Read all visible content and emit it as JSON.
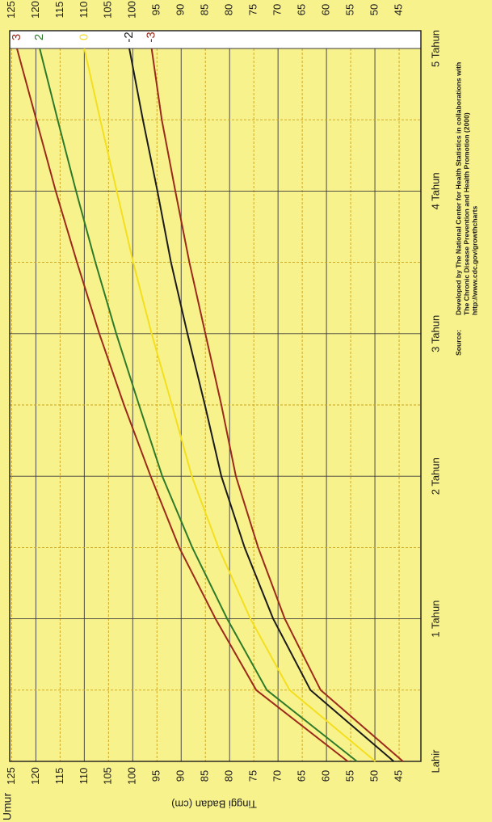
{
  "chart_data": {
    "type": "line",
    "y_label": "Tinggi Badan (cm)",
    "x_label": "Umur",
    "x": [
      0,
      6,
      12,
      18,
      24,
      30,
      36,
      42,
      48,
      54,
      60
    ],
    "xlim": [
      0,
      60
    ],
    "xticks": [
      {
        "value": 0,
        "label": "Lahir"
      },
      {
        "value": 12,
        "label": "1 Tahun"
      },
      {
        "value": 24,
        "label": "2 Tahun"
      },
      {
        "value": 36,
        "label": "3 Tahun"
      },
      {
        "value": 48,
        "label": "4 Tahun"
      },
      {
        "value": 60,
        "label": "5 Tahun"
      }
    ],
    "x_minor_ticks": [
      6,
      18,
      30,
      42,
      54
    ],
    "ylim": [
      40.5,
      125.4
    ],
    "yticks": [
      125,
      120,
      115,
      110,
      105,
      100,
      95,
      90,
      85,
      80,
      75,
      70,
      65,
      60,
      55,
      50,
      45
    ],
    "grid": true,
    "series": [
      {
        "name": "3",
        "color": "#9c2a1c",
        "values": [
          55.6,
          74.5,
          82.9,
          90.4,
          96.3,
          101.8,
          106.9,
          111.5,
          115.9,
          119.9,
          123.9
        ]
      },
      {
        "name": "2",
        "color": "#2f7a2a",
        "values": [
          53.7,
          72.3,
          80.5,
          87.7,
          93.9,
          98.7,
          103.4,
          107.7,
          111.7,
          115.5,
          119.2
        ]
      },
      {
        "name": "0",
        "color": "#f3df1e",
        "values": [
          49.9,
          67.6,
          75.7,
          82.3,
          87.8,
          91.9,
          96.1,
          99.9,
          103.3,
          106.7,
          110.0
        ]
      },
      {
        "name": "-2",
        "color": "#1b1b1b",
        "values": [
          46.1,
          63.3,
          71.0,
          76.9,
          81.7,
          85.1,
          88.7,
          92.1,
          94.9,
          97.9,
          100.7
        ]
      },
      {
        "name": "-3",
        "color": "#9c2a1c",
        "values": [
          44.2,
          61.2,
          68.6,
          74.1,
          78.7,
          81.7,
          85.0,
          88.3,
          91.2,
          94.0,
          96.1
        ]
      }
    ],
    "source_label": "Source:",
    "source_lines": [
      "Developed by The National Center for Health Statistics in collaborations with",
      "The Chronic Disease Prevention and Health Promotion (2000)",
      "http://www.cdc.gov/growthcharts"
    ]
  }
}
